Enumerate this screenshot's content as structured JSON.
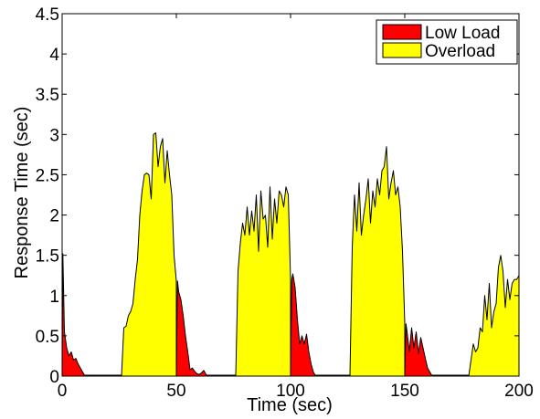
{
  "chart_data": {
    "type": "area",
    "xlabel": "Time (sec)",
    "ylabel": "Response Time (sec)",
    "xlim": [
      0,
      200
    ],
    "ylim": [
      0,
      4.5
    ],
    "x_ticks": [
      "0",
      "50",
      "100",
      "150",
      "200"
    ],
    "y_ticks": [
      "0",
      "0.5",
      "1",
      "1.5",
      "2",
      "2.5",
      "3",
      "3.5",
      "4",
      "4.5"
    ],
    "x_tick_values": [
      0,
      50,
      100,
      150,
      200
    ],
    "y_tick_values": [
      0,
      0.5,
      1,
      1.5,
      2,
      2.5,
      3,
      3.5,
      4,
      4.5
    ],
    "grid": false,
    "legend_position": "top-right",
    "series": [
      {
        "name": "Low Load",
        "color": "#ff0000",
        "segments": [
          [
            [
              0,
              0
            ],
            [
              0.3,
              1.52
            ],
            [
              1,
              0.55
            ],
            [
              2,
              0.35
            ],
            [
              3,
              0.25
            ],
            [
              4,
              0.3
            ],
            [
              5,
              0.2
            ],
            [
              6,
              0.22
            ],
            [
              7,
              0.15
            ],
            [
              8,
              0.1
            ],
            [
              9,
              0.05
            ],
            [
              10,
              0
            ]
          ],
          [
            [
              50,
              0
            ],
            [
              50.5,
              1.18
            ],
            [
              51,
              1.05
            ],
            [
              52,
              0.95
            ],
            [
              53,
              0.75
            ],
            [
              54,
              0.5
            ],
            [
              55,
              0.3
            ],
            [
              56,
              0.08
            ],
            [
              57,
              0.1
            ],
            [
              58,
              0.06
            ],
            [
              59,
              0.03
            ],
            [
              60,
              0.02
            ],
            [
              61,
              0.04
            ],
            [
              62,
              0.07
            ],
            [
              63,
              0.02
            ],
            [
              64,
              0
            ]
          ],
          [
            [
              100,
              0
            ],
            [
              100.5,
              1.2
            ],
            [
              101,
              1.27
            ],
            [
              102,
              1.1
            ],
            [
              103,
              0.7
            ],
            [
              104,
              0.4
            ],
            [
              105,
              0.5
            ],
            [
              106,
              0.4
            ],
            [
              107,
              0.52
            ],
            [
              108,
              0.3
            ],
            [
              109,
              0.15
            ],
            [
              110,
              0.05
            ],
            [
              111,
              0
            ]
          ],
          [
            [
              150,
              0
            ],
            [
              150.5,
              0.65
            ],
            [
              151,
              0.55
            ],
            [
              152,
              0.3
            ],
            [
              153,
              0.6
            ],
            [
              154,
              0.35
            ],
            [
              155,
              0.55
            ],
            [
              156,
              0.28
            ],
            [
              157,
              0.48
            ],
            [
              158,
              0.35
            ],
            [
              159,
              0.22
            ],
            [
              160,
              0.1
            ],
            [
              161,
              0.05
            ],
            [
              162,
              0
            ]
          ]
        ]
      },
      {
        "name": "Overload",
        "color": "#ffff00",
        "segments": [
          [
            [
              26,
              0
            ],
            [
              27,
              0.6
            ],
            [
              28,
              0.62
            ],
            [
              29,
              0.75
            ],
            [
              30,
              0.8
            ],
            [
              31,
              0.9
            ],
            [
              32,
              1.2
            ],
            [
              33,
              1.45
            ],
            [
              34,
              2.0
            ],
            [
              35,
              2.3
            ],
            [
              36,
              2.5
            ],
            [
              37,
              2.52
            ],
            [
              38,
              2.5
            ],
            [
              39,
              2.2
            ],
            [
              40,
              3.0
            ],
            [
              41,
              3.02
            ],
            [
              42,
              2.6
            ],
            [
              43,
              2.85
            ],
            [
              44,
              2.95
            ],
            [
              45,
              2.4
            ],
            [
              46,
              2.8
            ],
            [
              47,
              2.5
            ],
            [
              48,
              2.25
            ],
            [
              49,
              1.5
            ],
            [
              50,
              1.18
            ]
          ],
          [
            [
              76,
              0
            ],
            [
              77,
              1.3
            ],
            [
              78,
              1.65
            ],
            [
              79,
              1.9
            ],
            [
              80,
              1.75
            ],
            [
              81,
              2.1
            ],
            [
              82,
              1.75
            ],
            [
              83,
              2.05
            ],
            [
              84,
              1.8
            ],
            [
              85,
              2.25
            ],
            [
              86,
              1.55
            ],
            [
              87,
              2.3
            ],
            [
              88,
              1.95
            ],
            [
              89,
              2.0
            ],
            [
              90,
              1.6
            ],
            [
              91,
              2.35
            ],
            [
              92,
              1.7
            ],
            [
              93,
              2.2
            ],
            [
              94,
              1.9
            ],
            [
              95,
              2.3
            ],
            [
              96,
              2.25
            ],
            [
              97,
              2.1
            ],
            [
              98,
              2.35
            ],
            [
              99,
              2.25
            ],
            [
              100,
              1.2
            ]
          ],
          [
            [
              126,
              0
            ],
            [
              127,
              1.6
            ],
            [
              128,
              2.25
            ],
            [
              129,
              1.8
            ],
            [
              130,
              2.4
            ],
            [
              131,
              1.75
            ],
            [
              132,
              2.0
            ],
            [
              133,
              2.2
            ],
            [
              134,
              2.45
            ],
            [
              135,
              1.9
            ],
            [
              136,
              2.3
            ],
            [
              137,
              2.1
            ],
            [
              138,
              2.45
            ],
            [
              139,
              2.25
            ],
            [
              140,
              2.55
            ],
            [
              141,
              2.6
            ],
            [
              142,
              2.85
            ],
            [
              143,
              2.2
            ],
            [
              144,
              2.4
            ],
            [
              145,
              2.55
            ],
            [
              146,
              2.25
            ],
            [
              147,
              2.35
            ],
            [
              148,
              2.1
            ],
            [
              149,
              1.55
            ],
            [
              150,
              0.65
            ]
          ],
          [
            [
              178,
              0
            ],
            [
              179,
              0.2
            ],
            [
              180,
              0.4
            ],
            [
              181,
              0.3
            ],
            [
              182,
              0.35
            ],
            [
              183,
              0.6
            ],
            [
              184,
              0.55
            ],
            [
              185,
              1.0
            ],
            [
              186,
              0.7
            ],
            [
              187,
              1.15
            ],
            [
              188,
              0.6
            ],
            [
              189,
              0.8
            ],
            [
              190,
              0.9
            ],
            [
              191,
              1.35
            ],
            [
              192,
              1.5
            ],
            [
              193,
              1.3
            ],
            [
              194,
              0.85
            ],
            [
              195,
              1.2
            ],
            [
              196,
              0.95
            ],
            [
              197,
              1.15
            ],
            [
              198,
              1.2
            ],
            [
              199,
              1.2
            ],
            [
              200,
              1.25
            ],
            [
              200,
              0
            ]
          ]
        ]
      }
    ]
  }
}
